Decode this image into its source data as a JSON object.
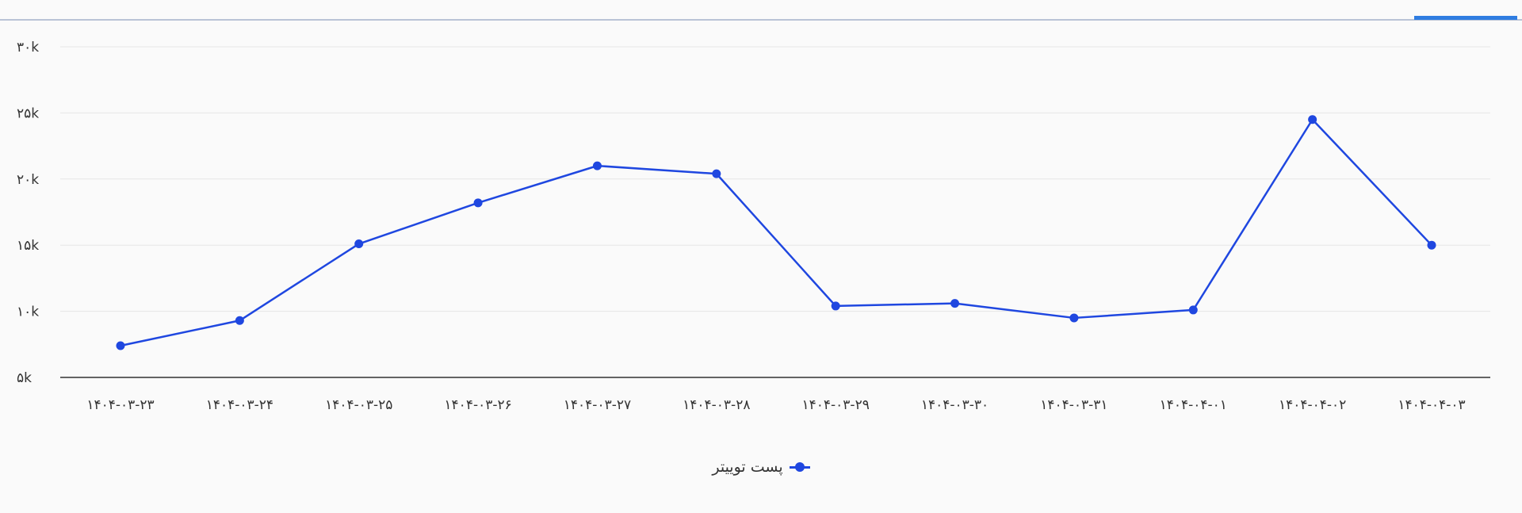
{
  "colors": {
    "series": "#1f47e0",
    "grid": "#e6e6e6",
    "axis": "#333333",
    "tab_indicator": "#2f7de1",
    "top_rule": "#b9c3d6"
  },
  "chart_data": {
    "type": "line",
    "title": "",
    "xlabel": "",
    "ylabel": "",
    "categories": [
      "۱۴۰۴-۰۳-۲۳",
      "۱۴۰۴-۰۳-۲۴",
      "۱۴۰۴-۰۳-۲۵",
      "۱۴۰۴-۰۳-۲۶",
      "۱۴۰۴-۰۳-۲۷",
      "۱۴۰۴-۰۳-۲۸",
      "۱۴۰۴-۰۳-۲۹",
      "۱۴۰۴-۰۳-۳۰",
      "۱۴۰۴-۰۳-۳۱",
      "۱۴۰۴-۰۴-۰۱",
      "۱۴۰۴-۰۴-۰۲",
      "۱۴۰۴-۰۴-۰۳"
    ],
    "series": [
      {
        "name": "پست توییتر",
        "values": [
          7400,
          9300,
          15100,
          18200,
          21000,
          20400,
          10400,
          10600,
          9500,
          10100,
          24500,
          15000
        ]
      }
    ],
    "ylim": [
      5000,
      30000
    ],
    "yticks": [
      {
        "value": 30000,
        "label": "۳۰k"
      },
      {
        "value": 25000,
        "label": "۲۵k"
      },
      {
        "value": 20000,
        "label": "۲۰k"
      },
      {
        "value": 15000,
        "label": "۱۵k"
      },
      {
        "value": 10000,
        "label": "۱۰k"
      },
      {
        "value": 5000,
        "label": "۵k"
      }
    ],
    "grid": true,
    "legend": "bottom-center"
  }
}
